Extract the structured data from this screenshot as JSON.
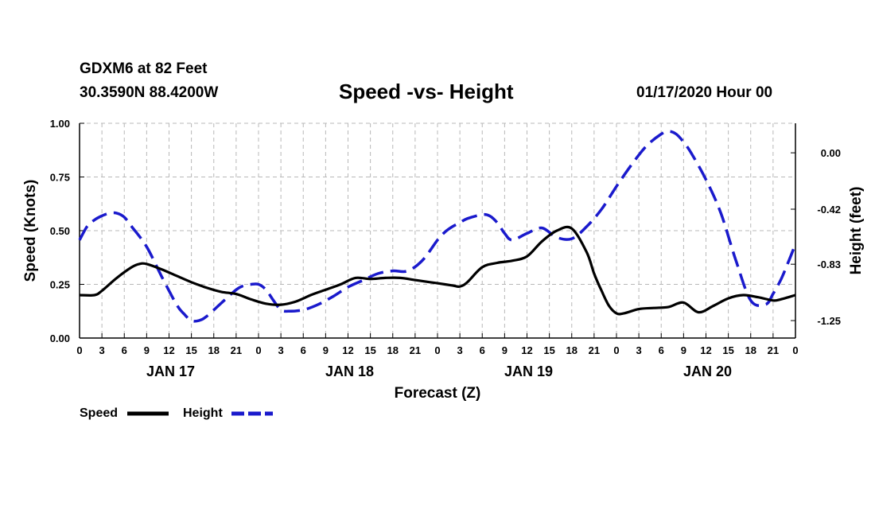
{
  "header": {
    "station": "GDXM6 at 82 Feet",
    "coords": "30.3590N 88.4200W",
    "title": "Speed -vs- Height",
    "date": "01/17/2020 Hour 00"
  },
  "colors": {
    "speed": "#000000",
    "height": "#1a1acc",
    "grid": "#b8b8b8"
  },
  "chart_data": {
    "type": "line",
    "title": "Speed -vs- Height",
    "xlabel": "Forecast (Z)",
    "ylabel": "Speed (Knots)",
    "y2label": "Height (feet)",
    "xlim": [
      0,
      96
    ],
    "ylim": [
      0,
      1
    ],
    "y2lim": [
      -1.38,
      0.22
    ],
    "x_ticks": [
      0,
      3,
      6,
      9,
      12,
      15,
      18,
      21,
      24,
      27,
      30,
      33,
      36,
      39,
      42,
      45,
      48,
      51,
      54,
      57,
      60,
      63,
      66,
      69,
      72,
      75,
      78,
      81,
      84,
      87,
      90,
      93,
      96
    ],
    "x_tick_labels": [
      "0",
      "3",
      "6",
      "9",
      "12",
      "15",
      "18",
      "21",
      "0",
      "3",
      "6",
      "9",
      "12",
      "15",
      "18",
      "21",
      "0",
      "3",
      "6",
      "9",
      "12",
      "15",
      "18",
      "21",
      "0",
      "3",
      "6",
      "9",
      "12",
      "15",
      "18",
      "21",
      "0"
    ],
    "day_labels": [
      {
        "x": 12,
        "label": "JAN 17"
      },
      {
        "x": 36,
        "label": "JAN 18"
      },
      {
        "x": 60,
        "label": "JAN 19"
      },
      {
        "x": 84,
        "label": "JAN 20"
      }
    ],
    "y_ticks": [
      0,
      0.25,
      0.5,
      0.75,
      1.0
    ],
    "y_tick_labels": [
      "0.00",
      "0.25",
      "0.50",
      "0.75",
      "1.00"
    ],
    "y2_ticks": [
      0,
      -0.42,
      -0.83,
      -1.25
    ],
    "y2_tick_labels": [
      "0.00",
      "-0.42",
      "-0.83",
      "-1.25"
    ],
    "series": [
      {
        "name": "Speed",
        "axis": "left",
        "x": [
          0,
          2,
          3,
          5,
          7,
          8,
          9,
          11,
          13,
          15,
          17,
          19,
          21,
          23,
          25,
          27,
          29,
          31,
          33,
          35,
          37,
          39,
          41,
          43,
          45,
          47,
          48,
          50,
          51,
          52,
          54,
          56,
          58,
          60,
          62,
          64,
          66,
          68,
          69,
          70,
          71,
          72,
          73,
          75,
          77,
          79,
          81,
          83,
          85,
          87,
          89,
          91,
          93,
          94,
          96
        ],
        "values": [
          0.2,
          0.2,
          0.22,
          0.28,
          0.33,
          0.345,
          0.345,
          0.32,
          0.29,
          0.26,
          0.235,
          0.215,
          0.205,
          0.18,
          0.16,
          0.155,
          0.17,
          0.2,
          0.225,
          0.25,
          0.28,
          0.275,
          0.28,
          0.28,
          0.27,
          0.26,
          0.255,
          0.245,
          0.24,
          0.26,
          0.33,
          0.35,
          0.36,
          0.38,
          0.45,
          0.5,
          0.51,
          0.4,
          0.3,
          0.22,
          0.15,
          0.115,
          0.115,
          0.135,
          0.14,
          0.145,
          0.165,
          0.12,
          0.15,
          0.185,
          0.2,
          0.19,
          0.175,
          0.18,
          0.2
        ]
      },
      {
        "name": "Height",
        "axis": "right",
        "x": [
          0,
          1,
          2,
          3,
          4,
          5,
          6,
          7,
          9,
          11,
          13,
          14,
          15,
          16,
          17,
          19,
          21,
          22,
          23,
          24,
          25,
          26,
          27,
          28,
          30,
          32,
          34,
          36,
          38,
          40,
          42,
          44,
          46,
          48,
          49,
          50,
          51,
          52,
          54,
          55,
          56,
          57,
          58,
          60,
          62,
          64,
          66,
          68,
          70,
          72,
          74,
          76,
          78,
          79,
          80,
          81,
          82,
          84,
          86,
          88,
          90,
          92,
          93,
          94,
          95,
          96
        ],
        "values": [
          -0.65,
          -0.55,
          -0.5,
          -0.47,
          -0.45,
          -0.45,
          -0.48,
          -0.55,
          -0.7,
          -0.92,
          -1.13,
          -1.2,
          -1.25,
          -1.25,
          -1.22,
          -1.12,
          -1.02,
          -0.99,
          -0.98,
          -0.98,
          -1.02,
          -1.1,
          -1.17,
          -1.18,
          -1.17,
          -1.13,
          -1.07,
          -1.0,
          -0.95,
          -0.9,
          -0.88,
          -0.88,
          -0.8,
          -0.65,
          -0.59,
          -0.55,
          -0.52,
          -0.49,
          -0.46,
          -0.47,
          -0.52,
          -0.6,
          -0.65,
          -0.6,
          -0.56,
          -0.63,
          -0.64,
          -0.55,
          -0.42,
          -0.25,
          -0.09,
          0.05,
          0.14,
          0.16,
          0.14,
          0.08,
          0.0,
          -0.2,
          -0.45,
          -0.8,
          -1.1,
          -1.13,
          -1.05,
          -0.95,
          -0.82,
          -0.68
        ]
      }
    ],
    "legend": {
      "position": "bottom-left",
      "entries": [
        "Speed",
        "Height"
      ]
    }
  }
}
